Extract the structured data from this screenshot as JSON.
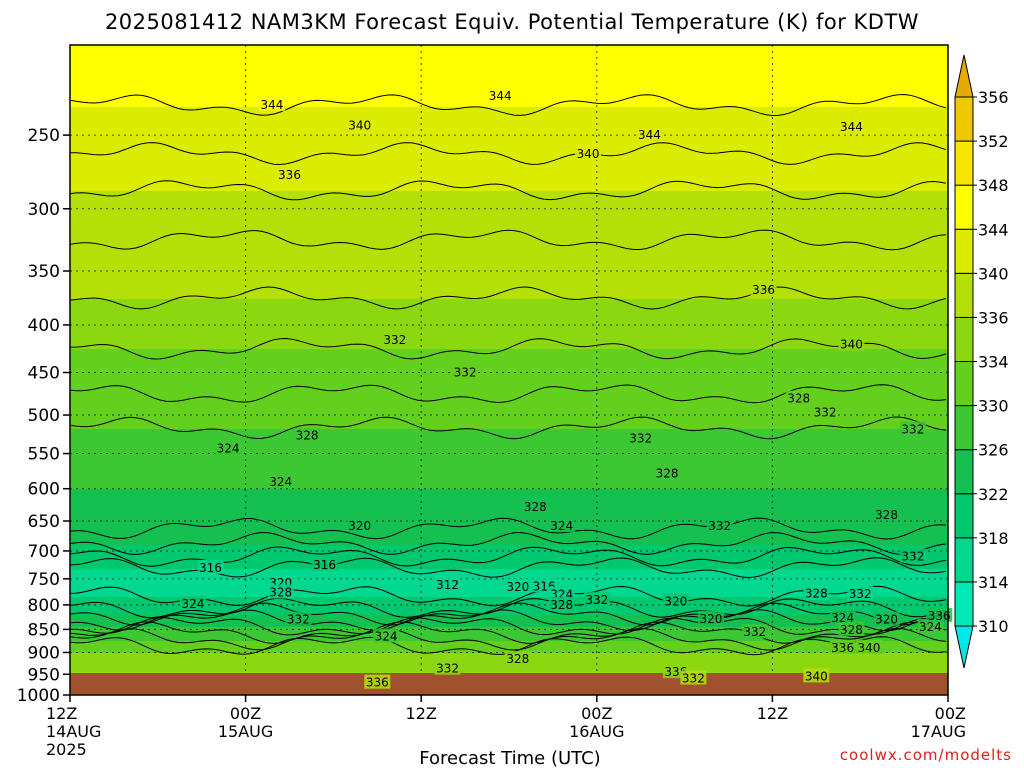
{
  "title": "2025081412 NAM3KM Forecast Equiv. Potential Temperature (K) for KDTW",
  "xlabel": "Forecast Time (UTC)",
  "credit": "coolwx.com/modelts",
  "colors": {
    "surface": "#a0522d",
    "palette": [
      "#00e8e8",
      "#00e8b4",
      "#00d890",
      "#00c86e",
      "#14c050",
      "#3cc832",
      "#64d01e",
      "#8cd810",
      "#b4e008",
      "#dcec00",
      "#ffff00",
      "#f8e600",
      "#f0c800",
      "#e8aa00"
    ]
  },
  "chart_data": {
    "type": "heatmap",
    "title": "2025081412 NAM3KM Forecast Equiv. Potential Temperature (K) for KDTW",
    "xlabel": "Forecast Time (UTC)",
    "ylabel": "",
    "y_scale": "log",
    "y_reversed": true,
    "y_ticks": [
      250,
      300,
      350,
      400,
      450,
      500,
      550,
      600,
      650,
      700,
      750,
      800,
      850,
      900,
      950,
      1000
    ],
    "y_range": [
      200,
      1000
    ],
    "x_ticks": [
      {
        "hour": 0,
        "l1": "12Z",
        "l2": "14AUG",
        "l3": "2025"
      },
      {
        "hour": 12,
        "l1": "00Z",
        "l2": "15AUG",
        "l3": ""
      },
      {
        "hour": 24,
        "l1": "12Z",
        "l2": "",
        "l3": ""
      },
      {
        "hour": 36,
        "l1": "00Z",
        "l2": "16AUG",
        "l3": ""
      },
      {
        "hour": 48,
        "l1": "12Z",
        "l2": "",
        "l3": ""
      },
      {
        "hour": 60,
        "l1": "00Z",
        "l2": "17AUG",
        "l3": ""
      }
    ],
    "x_range": [
      0,
      60
    ],
    "colorbar": {
      "levels": [
        310,
        314,
        318,
        322,
        326,
        330,
        334,
        336,
        340,
        344,
        348,
        352,
        356
      ],
      "labels": [
        "310",
        "314",
        "318",
        "322",
        "326",
        "330",
        "334",
        "336",
        "340",
        "344",
        "348",
        "352",
        "356"
      ]
    },
    "grid": true,
    "profile": {
      "p": [
        200,
        250,
        300,
        350,
        400,
        450,
        500,
        550,
        600,
        650,
        700,
        750,
        800,
        850,
        900,
        950,
        1000
      ],
      "theta_e": [
        346,
        343,
        339,
        337,
        335,
        333,
        331,
        328,
        326,
        325,
        321,
        316,
        319,
        327,
        334,
        336,
        336
      ]
    },
    "contour_labels": [
      {
        "t": 0.45,
        "p": 450,
        "v": "332"
      },
      {
        "t": 0.59,
        "p": 262,
        "v": "340"
      },
      {
        "t": 0.49,
        "p": 227,
        "v": "344"
      },
      {
        "t": 0.33,
        "p": 244,
        "v": "340"
      },
      {
        "t": 0.23,
        "p": 232,
        "v": "344"
      },
      {
        "t": 0.66,
        "p": 250,
        "v": "344"
      },
      {
        "t": 0.89,
        "p": 245,
        "v": "344"
      },
      {
        "t": 0.25,
        "p": 276,
        "v": "336"
      },
      {
        "t": 0.79,
        "p": 367,
        "v": "336"
      },
      {
        "t": 0.89,
        "p": 420,
        "v": "340"
      },
      {
        "t": 0.37,
        "p": 415,
        "v": "332"
      },
      {
        "t": 0.86,
        "p": 497,
        "v": "332"
      },
      {
        "t": 0.83,
        "p": 480,
        "v": "328"
      },
      {
        "t": 0.96,
        "p": 518,
        "v": "332"
      },
      {
        "t": 0.27,
        "p": 526,
        "v": "328"
      },
      {
        "t": 0.65,
        "p": 530,
        "v": "332"
      },
      {
        "t": 0.18,
        "p": 543,
        "v": "324"
      },
      {
        "t": 0.68,
        "p": 578,
        "v": "328"
      },
      {
        "t": 0.24,
        "p": 590,
        "v": "324"
      },
      {
        "t": 0.53,
        "p": 628,
        "v": "328"
      },
      {
        "t": 0.56,
        "p": 658,
        "v": "324"
      },
      {
        "t": 0.33,
        "p": 658,
        "v": "320"
      },
      {
        "t": 0.93,
        "p": 640,
        "v": "328"
      },
      {
        "t": 0.74,
        "p": 658,
        "v": "332"
      },
      {
        "t": 0.96,
        "p": 710,
        "v": "332"
      },
      {
        "t": 0.16,
        "p": 730,
        "v": "316"
      },
      {
        "t": 0.29,
        "p": 725,
        "v": "316"
      },
      {
        "t": 0.43,
        "p": 762,
        "v": "312"
      },
      {
        "t": 0.51,
        "p": 765,
        "v": "320"
      },
      {
        "t": 0.54,
        "p": 764,
        "v": "316"
      },
      {
        "t": 0.24,
        "p": 758,
        "v": "320"
      },
      {
        "t": 0.24,
        "p": 776,
        "v": "328"
      },
      {
        "t": 0.56,
        "p": 780,
        "v": "324"
      },
      {
        "t": 0.6,
        "p": 790,
        "v": "332"
      },
      {
        "t": 0.56,
        "p": 800,
        "v": "328"
      },
      {
        "t": 0.14,
        "p": 798,
        "v": "324"
      },
      {
        "t": 0.26,
        "p": 830,
        "v": "332"
      },
      {
        "t": 0.69,
        "p": 793,
        "v": "320"
      },
      {
        "t": 0.73,
        "p": 828,
        "v": "320"
      },
      {
        "t": 0.78,
        "p": 856,
        "v": "332"
      },
      {
        "t": 0.85,
        "p": 778,
        "v": "328"
      },
      {
        "t": 0.9,
        "p": 779,
        "v": "332"
      },
      {
        "t": 0.88,
        "p": 826,
        "v": "324"
      },
      {
        "t": 0.93,
        "p": 830,
        "v": "320"
      },
      {
        "t": 0.89,
        "p": 851,
        "v": "328"
      },
      {
        "t": 0.98,
        "p": 845,
        "v": "324"
      },
      {
        "t": 0.99,
        "p": 822,
        "v": "336"
      },
      {
        "t": 0.36,
        "p": 865,
        "v": "324"
      },
      {
        "t": 0.51,
        "p": 915,
        "v": "328"
      },
      {
        "t": 0.43,
        "p": 937,
        "v": "332"
      },
      {
        "t": 0.35,
        "p": 970,
        "v": "336"
      },
      {
        "t": 0.88,
        "p": 890,
        "v": "336"
      },
      {
        "t": 0.91,
        "p": 890,
        "v": "340"
      },
      {
        "t": 0.69,
        "p": 945,
        "v": "336"
      },
      {
        "t": 0.71,
        "p": 960,
        "v": "332"
      },
      {
        "t": 0.85,
        "p": 955,
        "v": "340"
      }
    ]
  }
}
